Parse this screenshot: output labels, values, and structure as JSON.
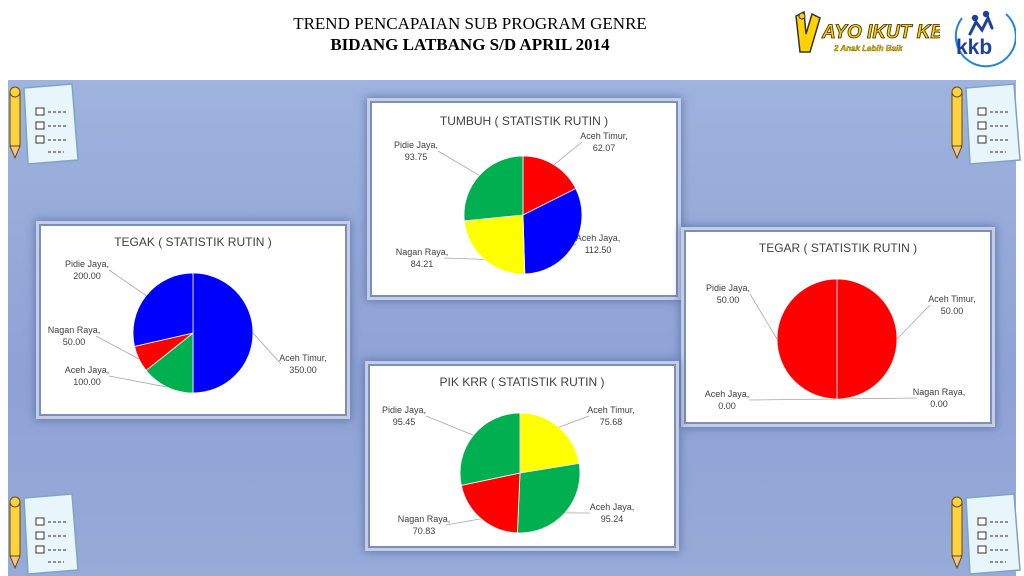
{
  "header": {
    "line1": "TREND PENCAPAIAN SUB PROGRAM GENRE",
    "line2": "BIDANG LATBANG S/D  APRIL 2014"
  },
  "logos": {
    "ayo_ikut_kb": {
      "text": "AYO IKUT KB",
      "tagline": "2 Anak Lebih Baik"
    },
    "kkb": {
      "text": "kkb"
    }
  },
  "colors": {
    "red": "#ff0000",
    "blue": "#0000ff",
    "green": "#00b050",
    "yellow": "#ffff00"
  },
  "chart_data": [
    {
      "id": "tumbuh",
      "type": "pie",
      "title": "TUMBUH ( STATISTIK RUTIN )",
      "slices": [
        {
          "category": "Aceh Timur",
          "value": 62.07,
          "value_label": "62.07",
          "color": "#ff0000"
        },
        {
          "category": "Aceh Jaya",
          "value": 112.5,
          "value_label": "112.50",
          "color": "#0000ff"
        },
        {
          "category": "Nagan Raya",
          "value": 84.21,
          "value_label": "84.21",
          "color": "#ffff00"
        },
        {
          "category": "Pidie Jaya",
          "value": 93.75,
          "value_label": "93.75",
          "color": "#00b050"
        }
      ]
    },
    {
      "id": "tegak",
      "type": "pie",
      "title": "TEGAK ( STATISTIK RUTIN )",
      "slices": [
        {
          "category": "Aceh Timur",
          "value": 350,
          "value_label": "350.00",
          "color": "#0000ff"
        },
        {
          "category": "Aceh Jaya",
          "value": 100,
          "value_label": "100.00",
          "color": "#00b050"
        },
        {
          "category": "Nagan Raya",
          "value": 50,
          "value_label": "50.00",
          "color": "#ff0000"
        },
        {
          "category": "Pidie Jaya",
          "value": 200,
          "value_label": "200.00",
          "color": "#0000ff"
        }
      ]
    },
    {
      "id": "tegar",
      "type": "pie",
      "title": "TEGAR ( STATISTIK RUTIN )",
      "slices": [
        {
          "category": "Aceh Timur",
          "value": 50,
          "value_label": "50.00",
          "color": "#ff0000"
        },
        {
          "category": "Nagan Raya",
          "value": 0,
          "value_label": "0.00",
          "color": "#ff0000"
        },
        {
          "category": "Aceh Jaya",
          "value": 0,
          "value_label": "0.00",
          "color": "#ff0000"
        },
        {
          "category": "Pidie Jaya",
          "value": 50,
          "value_label": "50.00",
          "color": "#ff0000"
        }
      ]
    },
    {
      "id": "pikkrr",
      "type": "pie",
      "title": "PIK KRR ( STATISTIK RUTIN )",
      "slices": [
        {
          "category": "Aceh Timur",
          "value": 75.68,
          "value_label": "75.68",
          "color": "#ffff00"
        },
        {
          "category": "Aceh Jaya",
          "value": 95.24,
          "value_label": "95.24",
          "color": "#00b050"
        },
        {
          "category": "Nagan Raya",
          "value": 70.83,
          "value_label": "70.83",
          "color": "#ff0000"
        },
        {
          "category": "Pidie Jaya",
          "value": 95.45,
          "value_label": "95.45",
          "color": "#00b050"
        }
      ]
    }
  ]
}
